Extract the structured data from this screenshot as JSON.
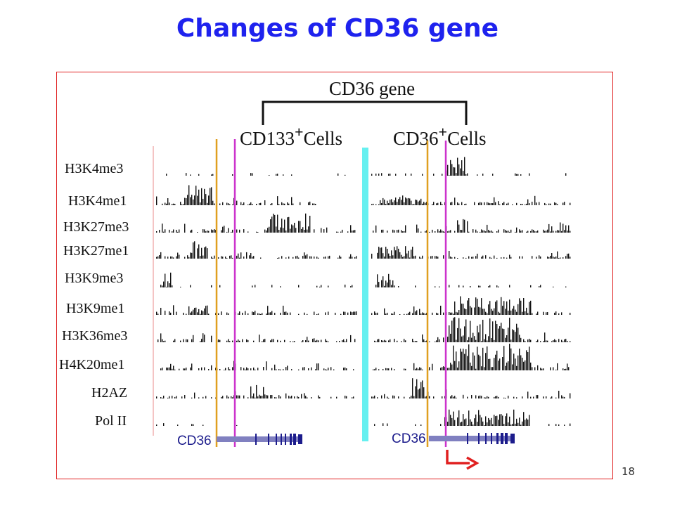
{
  "slide": {
    "title": "Changes of CD36 gene",
    "page_number": "18"
  },
  "diagram": {
    "gene_header": "CD36 gene",
    "panels": [
      {
        "cell_label": "CD133",
        "superscript": "+",
        "suffix": "Cells"
      },
      {
        "cell_label": "CD36",
        "superscript": "+",
        "suffix": "Cells"
      }
    ],
    "tracks": [
      "H3K4me3",
      "H3K4me1",
      "H3K27me3",
      "H3K27me1",
      "H3K9me3",
      "H3K9me1",
      "H3K36me3",
      "H4K20me1",
      "H2AZ",
      "Pol II"
    ],
    "gene_label": "CD36",
    "colors": {
      "title": "#1e22ee",
      "frame": "#e02020",
      "orange_line": "#e0a020",
      "magenta_line": "#cc33cc",
      "separator": "#66f0f0",
      "gene_model": "#8080c0",
      "tss_arrow": "#e02020"
    }
  }
}
